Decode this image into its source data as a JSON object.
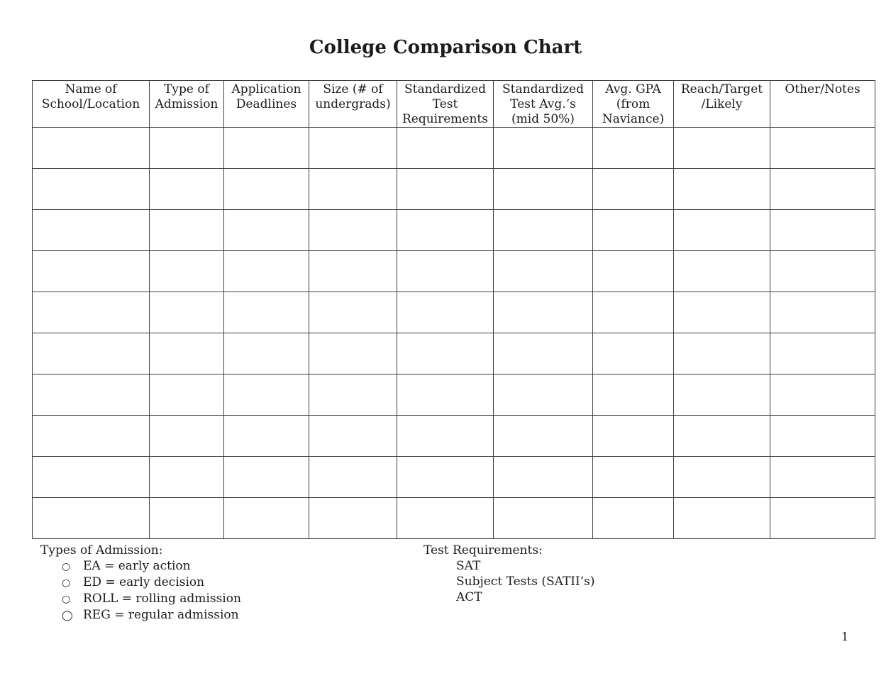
{
  "document": {
    "title": "College Comparison Chart",
    "page_number": "1"
  },
  "table": {
    "columns": [
      "Name of School/Location",
      "Type of Admission",
      "Application Deadlines",
      "Size (# of undergrads)",
      "Standardized Test Requirements",
      "Standardized Test Avg.’s (mid 50%)",
      "Avg. GPA (from Naviance)",
      "Reach/Target /Likely",
      "Other/Notes"
    ],
    "empty_rows": 10
  },
  "legend": {
    "admission_types": {
      "heading": "Types of Admission:",
      "items": [
        {
          "bullet": "○",
          "text": "EA = early action"
        },
        {
          "bullet": "○",
          "text": "ED = early decision"
        },
        {
          "bullet": "○",
          "text": "ROLL = rolling admission"
        },
        {
          "bullet": "◯",
          "text": "REG = regular admission"
        }
      ]
    },
    "test_requirements": {
      "heading": "Test Requirements:",
      "items": [
        "SAT",
        "Subject Tests (SATII’s)",
        "ACT"
      ]
    }
  },
  "colors": {
    "text": "#1c1c1c",
    "border": "#3f3f3f",
    "page_background": "#ffffff"
  }
}
